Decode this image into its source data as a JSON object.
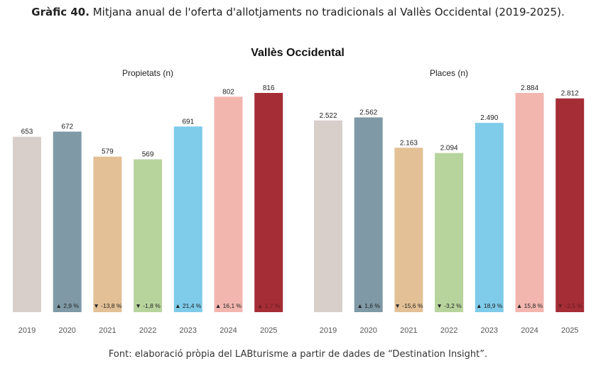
{
  "caption": {
    "label": "Gràfic 40.",
    "text": "Mitjana anual de l'oferta d'allotjaments no tradicionals al Vallès Occidental (2019-2025)."
  },
  "source": "Font: elaboració pròpia del LABturisme a partir de dades de “Destination Insight”.",
  "chart_data": [
    {
      "type": "bar",
      "title": "Vallès Occidental",
      "subtitle": "Propietats (n)",
      "categories": [
        "2019",
        "2020",
        "2021",
        "2022",
        "2023",
        "2024",
        "2025"
      ],
      "values": [
        653,
        672,
        579,
        569,
        691,
        802,
        816
      ],
      "value_labels": [
        "653",
        "672",
        "579",
        "569",
        "691",
        "802",
        "816"
      ],
      "changes": [
        "",
        "▲  2,9 %",
        "▼ -13,8 %",
        "▼  -1,8 %",
        "▲  21,4 %",
        "▲  16,1 %",
        "▲  1,7 %"
      ],
      "ylim": [
        0,
        816
      ]
    },
    {
      "type": "bar",
      "title": "Vallès Occidental",
      "subtitle": "Places (n)",
      "categories": [
        "2019",
        "2020",
        "2021",
        "2022",
        "2023",
        "2024",
        "2025"
      ],
      "values": [
        2522,
        2562,
        2163,
        2094,
        2490,
        2884,
        2812
      ],
      "value_labels": [
        "2.522",
        "2.562",
        "2.163",
        "2.094",
        "2.490",
        "2.884",
        "2.812"
      ],
      "changes": [
        "",
        "▲  1,6 %",
        "▼ -15,6 %",
        "▼  -3,2 %",
        "▲  18,9 %",
        "▲  15,8 %",
        "▼  -2,5 %"
      ],
      "ylim": [
        0,
        2884
      ]
    }
  ],
  "colors": [
    "#d8cfcb",
    "#7f99a6",
    "#e3c095",
    "#b7d49d",
    "#7ecbea",
    "#f2b6af",
    "#a52d36"
  ]
}
